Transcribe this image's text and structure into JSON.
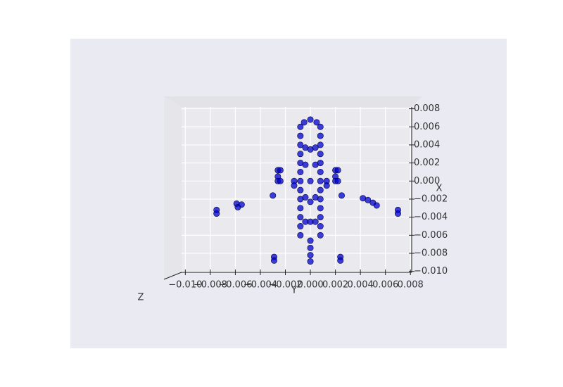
{
  "chart_data": {
    "type": "scatter",
    "x_label": "Y",
    "y_label": "X",
    "z_label": "Z",
    "x": [
      -0.0008,
      -0.0008,
      -0.0008,
      -0.0008,
      -0.0008,
      -0.0008,
      -0.0008,
      -0.0008,
      -0.0008,
      -0.0008,
      -0.0008,
      -0.0008,
      -0.0008,
      0.0008,
      0.0008,
      0.0008,
      0.0008,
      0.0008,
      0.0008,
      0.0008,
      0.0008,
      0.0008,
      0.0008,
      0.0008,
      0.0008,
      0.0008,
      0,
      -0.0005,
      0.0005,
      0,
      0,
      0,
      0,
      0,
      -0.0004,
      0.0004,
      -0.0004,
      0.0004,
      0,
      -0.0004,
      0.0004,
      0,
      -0.0004,
      0,
      0.0004,
      -0.0026,
      -0.0024,
      -0.0026,
      -0.0026,
      -0.0024,
      -0.003,
      0.002,
      0.0022,
      0.002,
      0.002,
      0.0022,
      0.0025,
      -0.0013,
      -0.0013,
      0.0013,
      0.0013,
      -0.0059,
      -0.0058,
      -0.0055,
      -0.0075,
      -0.0075,
      0.0042,
      0.0046,
      0.005,
      0.0053,
      0.007,
      0.007,
      -0.0029,
      -0.0029,
      0.0024,
      0.0024
    ],
    "values": [
      0.006,
      0.005,
      0.004,
      0.003,
      0.002,
      0.001,
      0,
      -0.001,
      -0.002,
      -0.003,
      -0.004,
      -0.005,
      -0.006,
      0.006,
      0.005,
      0.004,
      0.003,
      0.002,
      0.001,
      0,
      -0.001,
      -0.002,
      -0.003,
      -0.004,
      -0.005,
      -0.006,
      0.0068,
      0.0065,
      0.0065,
      -0.0066,
      -0.0074,
      -0.0082,
      -0.0089,
      0.0035,
      0.0037,
      0.0037,
      0.0018,
      0.0018,
      0,
      -0.0018,
      -0.0018,
      -0.0023,
      -0.0045,
      -0.0045,
      -0.0045,
      0.0012,
      0.0012,
      0.0005,
      0,
      0,
      -0.0016,
      0.0012,
      0.0012,
      0.0005,
      0,
      0,
      -0.0016,
      0,
      -0.0005,
      0,
      -0.0005,
      -0.0025,
      -0.0029,
      -0.0026,
      -0.0032,
      -0.0036,
      -0.0019,
      -0.0021,
      -0.0024,
      -0.0027,
      -0.0032,
      -0.0036,
      -0.0084,
      -0.0088,
      -0.0084,
      -0.0088
    ],
    "color": "#0000cc",
    "xlim": [
      -0.0103,
      0.0081
    ],
    "ylim": [
      -0.0101,
      0.0082
    ],
    "xticks": [
      {
        "value": -0.01,
        "label": "−0.010"
      },
      {
        "value": -0.008,
        "label": "−0.008"
      },
      {
        "value": -0.006,
        "label": "−0.006"
      },
      {
        "value": -0.004,
        "label": "−0.004"
      },
      {
        "value": -0.002,
        "label": "−0.002"
      },
      {
        "value": 0,
        "label": "0.000"
      },
      {
        "value": 0.002,
        "label": "0.002"
      },
      {
        "value": 0.004,
        "label": "0.004"
      },
      {
        "value": 0.006,
        "label": "0.006"
      },
      {
        "value": 0.008,
        "label": "0.008"
      }
    ],
    "yticks": [
      {
        "value": 0.008,
        "label": "0.008"
      },
      {
        "value": 0.006,
        "label": "0.006"
      },
      {
        "value": 0.004,
        "label": "0.004"
      },
      {
        "value": 0.002,
        "label": "0.002"
      },
      {
        "value": 0,
        "label": "0.000"
      },
      {
        "value": -0.002,
        "label": "−0.002"
      },
      {
        "value": -0.004,
        "label": "−0.004"
      },
      {
        "value": -0.006,
        "label": "−0.006"
      },
      {
        "value": -0.008,
        "label": "−0.008"
      },
      {
        "value": -0.01,
        "label": "−0.010"
      }
    ],
    "grid": true
  }
}
